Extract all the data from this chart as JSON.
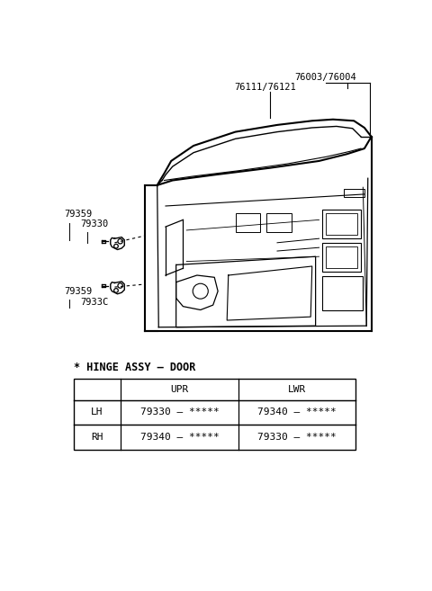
{
  "bg_color": "#ffffff",
  "title": "* HINGE ASSY – DOOR",
  "table_headers": [
    "",
    "UPR",
    "LWR"
  ],
  "table_rows": [
    [
      "LH",
      "79330 – *****",
      "79340 – *****"
    ],
    [
      "RH",
      "79340 – *****",
      "79330 – *****"
    ]
  ],
  "label_76003": "76003/76004",
  "label_76111": "76111/76121",
  "label_79359_u": "79359",
  "label_79330": "79330",
  "label_79359_l": "79359",
  "label_7933c": "7933C",
  "line_color": "#000000",
  "text_color": "#000000",
  "fs_small": 7.5,
  "fs_title": 8.5,
  "fs_table": 8
}
